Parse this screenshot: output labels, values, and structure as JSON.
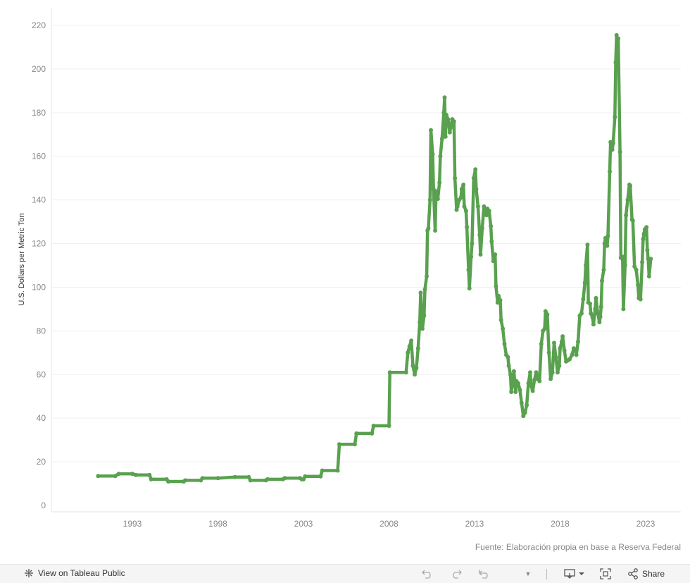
{
  "chart_data": {
    "type": "line",
    "ylabel": "U.S. Dollars per Metric Ton",
    "xlabel": "",
    "ylim": [
      0,
      226
    ],
    "yticks": [
      0,
      20,
      40,
      60,
      80,
      100,
      120,
      140,
      160,
      180,
      200,
      220
    ],
    "xticks": [
      1993,
      1998,
      2003,
      2008,
      2013,
      2018,
      2023
    ],
    "grid": true,
    "color": "#59a14f",
    "series": [
      {
        "name": "",
        "points": [
          [
            1991.0,
            13.5
          ],
          [
            1992.0,
            13.5
          ],
          [
            1992.2,
            14.5
          ],
          [
            1993.0,
            14.5
          ],
          [
            1993.2,
            14.0
          ],
          [
            1994.0,
            14.0
          ],
          [
            1994.1,
            12.0
          ],
          [
            1995.0,
            12.0
          ],
          [
            1995.1,
            11.0
          ],
          [
            1996.0,
            11.0
          ],
          [
            1996.1,
            11.5
          ],
          [
            1997.0,
            11.5
          ],
          [
            1997.1,
            12.5
          ],
          [
            1998.0,
            12.5
          ],
          [
            1999.0,
            13.0
          ],
          [
            1999.8,
            13.0
          ],
          [
            1999.9,
            11.5
          ],
          [
            2000.8,
            11.5
          ],
          [
            2000.9,
            12.0
          ],
          [
            2001.8,
            12.0
          ],
          [
            2001.9,
            12.5
          ],
          [
            2002.8,
            12.5
          ],
          [
            2002.9,
            12.0
          ],
          [
            2003.0,
            12.0
          ],
          [
            2003.1,
            13.3
          ],
          [
            2004.0,
            13.3
          ],
          [
            2004.1,
            16.0
          ],
          [
            2005.0,
            16.0
          ],
          [
            2005.1,
            28.0
          ],
          [
            2006.0,
            28.0
          ],
          [
            2006.1,
            33.0
          ],
          [
            2007.0,
            33.0
          ],
          [
            2007.1,
            36.5
          ],
          [
            2008.0,
            36.5
          ],
          [
            2008.05,
            61.0
          ],
          [
            2009.0,
            61.0
          ],
          [
            2009.1,
            70.0
          ],
          [
            2009.2,
            73.0
          ],
          [
            2009.3,
            75.5
          ],
          [
            2009.4,
            64.0
          ],
          [
            2009.5,
            60.0
          ],
          [
            2009.6,
            63.0
          ],
          [
            2009.7,
            72.0
          ],
          [
            2009.8,
            84.0
          ],
          [
            2009.85,
            97.5
          ],
          [
            2009.95,
            81.0
          ],
          [
            2010.05,
            87.0
          ],
          [
            2010.1,
            99.0
          ],
          [
            2010.2,
            105.0
          ],
          [
            2010.25,
            126.0
          ],
          [
            2010.3,
            127.0
          ],
          [
            2010.4,
            140.0
          ],
          [
            2010.45,
            172.0
          ],
          [
            2010.55,
            161.0
          ],
          [
            2010.6,
            145.0
          ],
          [
            2010.7,
            126.0
          ],
          [
            2010.75,
            144.0
          ],
          [
            2010.85,
            140.5
          ],
          [
            2010.95,
            148.0
          ],
          [
            2011.0,
            160.0
          ],
          [
            2011.1,
            168.0
          ],
          [
            2011.2,
            180.0
          ],
          [
            2011.25,
            187.0
          ],
          [
            2011.3,
            169.0
          ],
          [
            2011.35,
            179.0
          ],
          [
            2011.45,
            177.0
          ],
          [
            2011.55,
            171.0
          ],
          [
            2011.6,
            173.0
          ],
          [
            2011.7,
            177.0
          ],
          [
            2011.8,
            176.0
          ],
          [
            2011.85,
            150.0
          ],
          [
            2011.95,
            135.5
          ],
          [
            2012.0,
            137.0
          ],
          [
            2012.1,
            140.0
          ],
          [
            2012.2,
            141.0
          ],
          [
            2012.25,
            145.0
          ],
          [
            2012.35,
            147.0
          ],
          [
            2012.4,
            137.0
          ],
          [
            2012.5,
            135.0
          ],
          [
            2012.55,
            127.5
          ],
          [
            2012.65,
            108.0
          ],
          [
            2012.7,
            99.5
          ],
          [
            2012.8,
            114.0
          ],
          [
            2012.85,
            120.0
          ],
          [
            2012.95,
            150.0
          ],
          [
            2013.05,
            154.0
          ],
          [
            2013.1,
            145.0
          ],
          [
            2013.2,
            137.0
          ],
          [
            2013.3,
            124.0
          ],
          [
            2013.35,
            115.0
          ],
          [
            2013.45,
            127.0
          ],
          [
            2013.55,
            137.0
          ],
          [
            2013.6,
            134.0
          ],
          [
            2013.7,
            133.0
          ],
          [
            2013.75,
            136.0
          ],
          [
            2013.85,
            135.0
          ],
          [
            2013.95,
            128.0
          ],
          [
            2014.0,
            121.0
          ],
          [
            2014.1,
            112.0
          ],
          [
            2014.2,
            115.0
          ],
          [
            2014.25,
            100.5
          ],
          [
            2014.35,
            93.0
          ],
          [
            2014.4,
            96.0
          ],
          [
            2014.5,
            94.0
          ],
          [
            2014.55,
            85.0
          ],
          [
            2014.65,
            81.0
          ],
          [
            2014.75,
            74.0
          ],
          [
            2014.85,
            69.0
          ],
          [
            2014.95,
            68.0
          ],
          [
            2015.0,
            64.0
          ],
          [
            2015.1,
            60.0
          ],
          [
            2015.15,
            52.0
          ],
          [
            2015.25,
            58.0
          ],
          [
            2015.3,
            61.5
          ],
          [
            2015.4,
            52.0
          ],
          [
            2015.45,
            57.0
          ],
          [
            2015.55,
            56.0
          ],
          [
            2015.65,
            53.0
          ],
          [
            2015.75,
            47.0
          ],
          [
            2015.85,
            41.0
          ],
          [
            2015.95,
            42.5
          ],
          [
            2016.05,
            46.0
          ],
          [
            2016.15,
            56.0
          ],
          [
            2016.25,
            61.0
          ],
          [
            2016.3,
            55.0
          ],
          [
            2016.4,
            52.5
          ],
          [
            2016.5,
            57.5
          ],
          [
            2016.6,
            61.0
          ],
          [
            2016.7,
            58.0
          ],
          [
            2016.8,
            57.0
          ],
          [
            2016.9,
            74.0
          ],
          [
            2017.0,
            80.0
          ],
          [
            2017.1,
            81.0
          ],
          [
            2017.15,
            89.0
          ],
          [
            2017.25,
            87.5
          ],
          [
            2017.35,
            70.0
          ],
          [
            2017.45,
            58.0
          ],
          [
            2017.55,
            61.0
          ],
          [
            2017.65,
            74.5
          ],
          [
            2017.75,
            68.0
          ],
          [
            2017.85,
            61.0
          ],
          [
            2017.95,
            64.0
          ],
          [
            2018.0,
            72.0
          ],
          [
            2018.1,
            75.0
          ],
          [
            2018.15,
            77.5
          ],
          [
            2018.25,
            71.0
          ],
          [
            2018.35,
            66.0
          ],
          [
            2018.45,
            66.5
          ],
          [
            2018.55,
            67.0
          ],
          [
            2018.7,
            69.0
          ],
          [
            2018.8,
            72.0
          ],
          [
            2018.9,
            71.5
          ],
          [
            2018.95,
            69.0
          ],
          [
            2019.05,
            75.0
          ],
          [
            2019.15,
            87.0
          ],
          [
            2019.25,
            88.0
          ],
          [
            2019.35,
            94.5
          ],
          [
            2019.45,
            102.0
          ],
          [
            2019.5,
            110.0
          ],
          [
            2019.6,
            119.5
          ],
          [
            2019.65,
            93.0
          ],
          [
            2019.75,
            92.5
          ],
          [
            2019.8,
            88.0
          ],
          [
            2019.9,
            86.0
          ],
          [
            2019.95,
            83.0
          ],
          [
            2020.05,
            90.0
          ],
          [
            2020.1,
            95.0
          ],
          [
            2020.2,
            88.0
          ],
          [
            2020.3,
            84.0
          ],
          [
            2020.35,
            86.5
          ],
          [
            2020.4,
            91.0
          ],
          [
            2020.45,
            103.0
          ],
          [
            2020.55,
            108.0
          ],
          [
            2020.6,
            120.0
          ],
          [
            2020.65,
            122.5
          ],
          [
            2020.75,
            119.0
          ],
          [
            2020.8,
            123.5
          ],
          [
            2020.9,
            153.0
          ],
          [
            2020.95,
            166.5
          ],
          [
            2021.05,
            163.0
          ],
          [
            2021.1,
            166.0
          ],
          [
            2021.2,
            178.0
          ],
          [
            2021.25,
            203.0
          ],
          [
            2021.3,
            215.5
          ],
          [
            2021.35,
            213.0
          ],
          [
            2021.4,
            214.0
          ],
          [
            2021.5,
            162.0
          ],
          [
            2021.55,
            113.5
          ],
          [
            2021.65,
            114.0
          ],
          [
            2021.7,
            90.0
          ],
          [
            2021.8,
            110.0
          ],
          [
            2021.85,
            133.0
          ],
          [
            2021.95,
            140.0
          ],
          [
            2022.05,
            147.0
          ],
          [
            2022.1,
            146.5
          ],
          [
            2022.2,
            131.0
          ],
          [
            2022.25,
            130.5
          ],
          [
            2022.35,
            109.5
          ],
          [
            2022.45,
            108.0
          ],
          [
            2022.55,
            101.0
          ],
          [
            2022.6,
            95.0
          ],
          [
            2022.7,
            94.5
          ],
          [
            2022.8,
            111.5
          ],
          [
            2022.85,
            122.0
          ],
          [
            2022.9,
            124.5
          ],
          [
            2022.95,
            126.5
          ],
          [
            2023.05,
            127.5
          ],
          [
            2023.1,
            117.0
          ],
          [
            2023.15,
            113.0
          ],
          [
            2023.2,
            105.0
          ],
          [
            2023.3,
            113.0
          ]
        ]
      }
    ]
  },
  "source": "Fuente: Elaboración propia en base a Reserva Federal",
  "toolbar": {
    "view_label": "View on Tableau Public",
    "share_label": "Share"
  }
}
